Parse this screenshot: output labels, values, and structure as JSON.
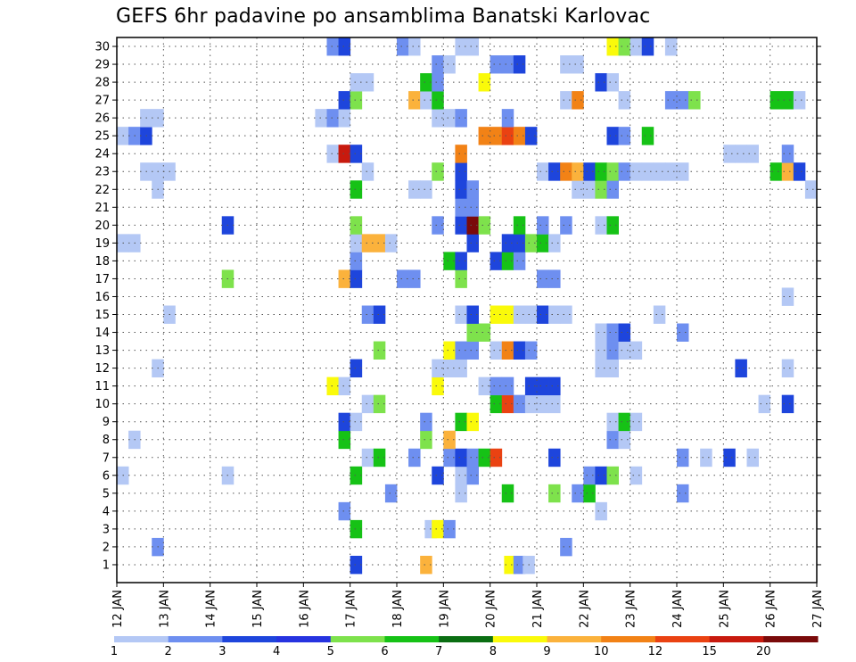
{
  "chart_data": {
    "type": "heatmap",
    "title": "GEFS 6hr padavine po ansamblima Banatski Karlovac",
    "x_tick_labels": [
      "12 JAN",
      "13 JAN",
      "14 JAN",
      "15 JAN",
      "16 JAN",
      "17 JAN",
      "18 JAN",
      "19 JAN",
      "20 JAN",
      "21 JAN",
      "22 JAN",
      "23 JAN",
      "24 JAN",
      "25 JAN",
      "26 JAN",
      "27 JAN"
    ],
    "y_tick_labels": [
      "1",
      "2",
      "3",
      "4",
      "5",
      "6",
      "7",
      "8",
      "9",
      "10",
      "11",
      "12",
      "13",
      "14",
      "15",
      "16",
      "17",
      "18",
      "19",
      "20",
      "21",
      "22",
      "23",
      "24",
      "25",
      "26",
      "27",
      "28",
      "29",
      "30"
    ],
    "xlim_days": [
      12,
      27
    ],
    "ylim_members": [
      0,
      30
    ],
    "time_step_hours": 6,
    "grid": true,
    "legend_position": "bottom",
    "colorbar": {
      "labels": [
        "1",
        "2",
        "3",
        "4",
        "5",
        "6",
        "7",
        "8",
        "9",
        "10",
        "12",
        "15",
        "20"
      ],
      "colors": [
        "#b4c8f5",
        "#6e8ff0",
        "#1e45dc",
        "#2633e0",
        "#7ee24c",
        "#16c216",
        "#0a6e12",
        "#fafa0a",
        "#fbb23c",
        "#f28216",
        "#ea4212",
        "#c81a0e",
        "#7a0a0a"
      ]
    },
    "cells": [
      [
        1,
        17.0,
        3
      ],
      [
        1,
        18.5,
        9
      ],
      [
        1,
        20.3,
        8
      ],
      [
        1,
        20.5,
        2
      ],
      [
        1,
        20.7,
        1
      ],
      [
        2,
        12.75,
        2
      ],
      [
        2,
        21.5,
        2
      ],
      [
        3,
        17.0,
        6
      ],
      [
        3,
        18.6,
        1
      ],
      [
        3,
        18.75,
        8
      ],
      [
        3,
        19.0,
        2
      ],
      [
        4,
        16.75,
        2
      ],
      [
        4,
        22.25,
        1
      ],
      [
        5,
        17.75,
        2
      ],
      [
        5,
        19.25,
        1
      ],
      [
        5,
        20.25,
        6
      ],
      [
        5,
        21.25,
        5
      ],
      [
        5,
        21.75,
        2
      ],
      [
        5,
        22.0,
        6
      ],
      [
        5,
        24.0,
        2
      ],
      [
        6,
        12.0,
        1
      ],
      [
        6,
        14.25,
        1
      ],
      [
        6,
        17.0,
        6
      ],
      [
        6,
        18.75,
        3
      ],
      [
        6,
        19.25,
        1
      ],
      [
        6,
        19.5,
        2
      ],
      [
        6,
        22.0,
        2
      ],
      [
        6,
        22.25,
        3
      ],
      [
        6,
        22.5,
        5
      ],
      [
        6,
        23.0,
        1
      ],
      [
        7,
        17.25,
        1
      ],
      [
        7,
        17.5,
        6
      ],
      [
        7,
        18.25,
        2
      ],
      [
        7,
        19.0,
        2
      ],
      [
        7,
        19.25,
        3
      ],
      [
        7,
        19.5,
        2
      ],
      [
        7,
        19.75,
        6
      ],
      [
        7,
        20.0,
        11
      ],
      [
        7,
        21.25,
        3
      ],
      [
        7,
        24.0,
        2
      ],
      [
        7,
        24.5,
        1
      ],
      [
        7,
        25.0,
        3
      ],
      [
        7,
        25.5,
        1
      ],
      [
        8,
        12.25,
        1
      ],
      [
        8,
        16.75,
        6
      ],
      [
        8,
        18.5,
        5
      ],
      [
        8,
        19.0,
        9
      ],
      [
        8,
        22.5,
        2
      ],
      [
        8,
        22.75,
        1
      ],
      [
        9,
        16.75,
        3
      ],
      [
        9,
        17.0,
        1
      ],
      [
        9,
        18.5,
        2
      ],
      [
        9,
        19.25,
        6
      ],
      [
        9,
        19.5,
        8
      ],
      [
        9,
        22.5,
        1
      ],
      [
        9,
        22.75,
        6
      ],
      [
        9,
        23.0,
        1
      ],
      [
        10,
        17.25,
        1
      ],
      [
        10,
        17.5,
        5
      ],
      [
        10,
        20.0,
        6
      ],
      [
        10,
        20.25,
        11
      ],
      [
        10,
        20.5,
        2
      ],
      [
        10,
        20.75,
        1
      ],
      [
        10,
        21.0,
        1
      ],
      [
        10,
        21.25,
        1
      ],
      [
        10,
        25.75,
        1
      ],
      [
        10,
        26.25,
        3
      ],
      [
        11,
        16.5,
        8
      ],
      [
        11,
        16.75,
        1
      ],
      [
        11,
        18.75,
        8
      ],
      [
        11,
        19.75,
        1
      ],
      [
        11,
        20.0,
        2
      ],
      [
        11,
        20.25,
        2
      ],
      [
        11,
        20.75,
        3
      ],
      [
        11,
        21.0,
        3
      ],
      [
        11,
        21.25,
        3
      ],
      [
        12,
        12.75,
        1
      ],
      [
        12,
        17.0,
        3
      ],
      [
        12,
        18.75,
        1
      ],
      [
        12,
        19.0,
        1
      ],
      [
        12,
        19.25,
        1
      ],
      [
        12,
        22.25,
        1
      ],
      [
        12,
        22.5,
        1
      ],
      [
        12,
        25.25,
        3
      ],
      [
        12,
        26.25,
        1
      ],
      [
        13,
        17.5,
        5
      ],
      [
        13,
        19.0,
        8
      ],
      [
        13,
        19.25,
        2
      ],
      [
        13,
        19.5,
        2
      ],
      [
        13,
        20.0,
        1
      ],
      [
        13,
        20.25,
        10
      ],
      [
        13,
        20.5,
        3
      ],
      [
        13,
        20.75,
        2
      ],
      [
        13,
        22.25,
        1
      ],
      [
        13,
        22.5,
        2
      ],
      [
        13,
        22.75,
        1
      ],
      [
        13,
        23.0,
        1
      ],
      [
        14,
        19.5,
        5
      ],
      [
        14,
        19.75,
        5
      ],
      [
        14,
        22.25,
        1
      ],
      [
        14,
        22.5,
        2
      ],
      [
        14,
        22.75,
        3
      ],
      [
        14,
        24.0,
        2
      ],
      [
        15,
        13.0,
        1
      ],
      [
        15,
        17.25,
        2
      ],
      [
        15,
        17.5,
        3
      ],
      [
        15,
        19.25,
        1
      ],
      [
        15,
        19.5,
        3
      ],
      [
        15,
        20.0,
        8
      ],
      [
        15,
        20.25,
        8
      ],
      [
        15,
        20.5,
        1
      ],
      [
        15,
        20.75,
        1
      ],
      [
        15,
        21.0,
        3
      ],
      [
        15,
        21.25,
        1
      ],
      [
        15,
        21.5,
        1
      ],
      [
        15,
        23.5,
        1
      ],
      [
        16,
        26.25,
        1
      ],
      [
        17,
        14.25,
        5
      ],
      [
        17,
        16.75,
        9
      ],
      [
        17,
        17.0,
        3
      ],
      [
        17,
        18.0,
        2
      ],
      [
        17,
        18.25,
        2
      ],
      [
        17,
        19.25,
        5
      ],
      [
        17,
        21.0,
        2
      ],
      [
        17,
        21.25,
        2
      ],
      [
        18,
        17.0,
        2
      ],
      [
        18,
        19.0,
        6
      ],
      [
        18,
        19.25,
        3
      ],
      [
        18,
        20.0,
        3
      ],
      [
        18,
        20.25,
        6
      ],
      [
        18,
        20.5,
        2
      ],
      [
        19,
        12.0,
        1
      ],
      [
        19,
        12.25,
        1
      ],
      [
        19,
        17.0,
        1
      ],
      [
        19,
        17.25,
        9
      ],
      [
        19,
        17.5,
        9
      ],
      [
        19,
        17.75,
        1
      ],
      [
        19,
        19.5,
        3
      ],
      [
        19,
        20.25,
        3
      ],
      [
        19,
        20.5,
        3
      ],
      [
        19,
        20.75,
        5
      ],
      [
        19,
        21.0,
        6
      ],
      [
        19,
        21.25,
        1
      ],
      [
        20,
        14.25,
        3
      ],
      [
        20,
        17.0,
        5
      ],
      [
        20,
        18.75,
        2
      ],
      [
        20,
        19.25,
        3
      ],
      [
        20,
        19.5,
        13
      ],
      [
        20,
        19.75,
        5
      ],
      [
        20,
        20.5,
        6
      ],
      [
        20,
        21.0,
        2
      ],
      [
        20,
        21.5,
        2
      ],
      [
        20,
        22.25,
        1
      ],
      [
        20,
        22.5,
        6
      ],
      [
        21,
        19.25,
        2
      ],
      [
        21,
        19.5,
        2
      ],
      [
        22,
        12.75,
        1
      ],
      [
        22,
        17.0,
        6
      ],
      [
        22,
        18.25,
        1
      ],
      [
        22,
        18.5,
        1
      ],
      [
        22,
        19.25,
        3
      ],
      [
        22,
        19.5,
        2
      ],
      [
        22,
        21.75,
        1
      ],
      [
        22,
        22.0,
        1
      ],
      [
        22,
        22.25,
        5
      ],
      [
        22,
        22.5,
        2
      ],
      [
        22,
        26.75,
        1
      ],
      [
        23,
        12.5,
        1
      ],
      [
        23,
        12.75,
        1
      ],
      [
        23,
        13.0,
        1
      ],
      [
        23,
        17.25,
        1
      ],
      [
        23,
        18.75,
        5
      ],
      [
        23,
        19.25,
        3
      ],
      [
        23,
        21.0,
        1
      ],
      [
        23,
        21.25,
        3
      ],
      [
        23,
        21.5,
        10
      ],
      [
        23,
        21.75,
        9
      ],
      [
        23,
        22.0,
        3
      ],
      [
        23,
        22.25,
        6
      ],
      [
        23,
        22.5,
        5
      ],
      [
        23,
        22.75,
        2
      ],
      [
        23,
        23.0,
        1
      ],
      [
        23,
        23.25,
        1
      ],
      [
        23,
        23.5,
        1
      ],
      [
        23,
        23.75,
        1
      ],
      [
        23,
        24.0,
        1
      ],
      [
        23,
        26.0,
        6
      ],
      [
        23,
        26.25,
        9
      ],
      [
        23,
        26.5,
        3
      ],
      [
        24,
        16.5,
        1
      ],
      [
        24,
        16.75,
        12
      ],
      [
        24,
        17.0,
        3
      ],
      [
        24,
        19.25,
        10
      ],
      [
        24,
        25.0,
        1
      ],
      [
        24,
        25.25,
        1
      ],
      [
        24,
        25.5,
        1
      ],
      [
        24,
        26.25,
        2
      ],
      [
        25,
        12.0,
        1
      ],
      [
        25,
        12.25,
        2
      ],
      [
        25,
        12.5,
        3
      ],
      [
        25,
        19.75,
        10
      ],
      [
        25,
        20.0,
        10
      ],
      [
        25,
        20.25,
        11
      ],
      [
        25,
        20.5,
        10
      ],
      [
        25,
        20.75,
        3
      ],
      [
        25,
        22.5,
        3
      ],
      [
        25,
        22.75,
        2
      ],
      [
        25,
        23.25,
        6
      ],
      [
        26,
        12.5,
        1
      ],
      [
        26,
        12.75,
        1
      ],
      [
        26,
        16.25,
        1
      ],
      [
        26,
        16.5,
        2
      ],
      [
        26,
        16.75,
        1
      ],
      [
        26,
        18.75,
        1
      ],
      [
        26,
        19.0,
        1
      ],
      [
        26,
        19.25,
        2
      ],
      [
        26,
        20.25,
        2
      ],
      [
        27,
        16.75,
        3
      ],
      [
        27,
        17.0,
        5
      ],
      [
        27,
        18.25,
        9
      ],
      [
        27,
        18.5,
        1
      ],
      [
        27,
        18.75,
        6
      ],
      [
        27,
        21.5,
        1
      ],
      [
        27,
        21.75,
        10
      ],
      [
        27,
        22.75,
        1
      ],
      [
        27,
        23.75,
        2
      ],
      [
        27,
        24.0,
        2
      ],
      [
        27,
        24.25,
        5
      ],
      [
        27,
        26.0,
        6
      ],
      [
        27,
        26.25,
        6
      ],
      [
        27,
        26.5,
        1
      ],
      [
        28,
        17.0,
        1
      ],
      [
        28,
        17.25,
        1
      ],
      [
        28,
        18.5,
        6
      ],
      [
        28,
        18.75,
        2
      ],
      [
        28,
        19.75,
        8
      ],
      [
        28,
        22.25,
        3
      ],
      [
        28,
        22.5,
        1
      ],
      [
        29,
        18.75,
        2
      ],
      [
        29,
        19.0,
        1
      ],
      [
        29,
        20.0,
        2
      ],
      [
        29,
        20.25,
        2
      ],
      [
        29,
        20.5,
        3
      ],
      [
        29,
        21.5,
        1
      ],
      [
        29,
        21.75,
        1
      ],
      [
        30,
        16.5,
        2
      ],
      [
        30,
        16.75,
        3
      ],
      [
        30,
        18.0,
        2
      ],
      [
        30,
        18.25,
        1
      ],
      [
        30,
        19.25,
        1
      ],
      [
        30,
        19.5,
        1
      ],
      [
        30,
        22.5,
        8
      ],
      [
        30,
        22.75,
        5
      ],
      [
        30,
        23.0,
        1
      ],
      [
        30,
        23.25,
        3
      ],
      [
        30,
        23.75,
        1
      ]
    ]
  }
}
